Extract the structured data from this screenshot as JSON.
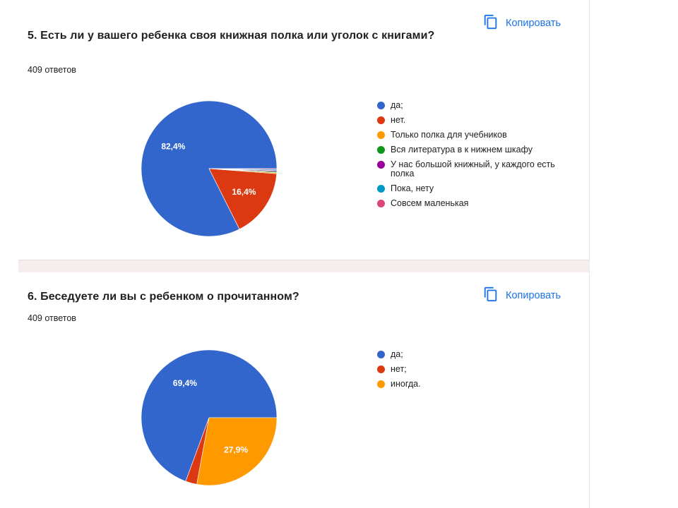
{
  "copy_label": "Копировать",
  "questions": [
    {
      "title": "5.   Есть ли у вашего ребенка своя книжная полка или уголок с книгами?",
      "responses": "409 ответов",
      "legend": [
        {
          "label": "да;",
          "color": "#3366cc"
        },
        {
          "label": "нет.",
          "color": "#dc3912"
        },
        {
          "label": "Только полка для учебников",
          "color": "#ff9900"
        },
        {
          "label": "Вся литература в к нижнем шкафу",
          "color": "#109618"
        },
        {
          "label": "У нас большой книжный, у каждого есть полка",
          "color": "#990099"
        },
        {
          "label": "Пока, нету",
          "color": "#0099c6"
        },
        {
          "label": "Совсем маленькая",
          "color": "#dd4477"
        }
      ]
    },
    {
      "title": "6. Беседуете ли вы с ребенком о прочитанном?",
      "responses": "409 ответов",
      "legend": [
        {
          "label": "да;",
          "color": "#3366cc"
        },
        {
          "label": "нет;",
          "color": "#dc3912"
        },
        {
          "label": "иногда.",
          "color": "#ff9900"
        }
      ]
    }
  ],
  "chart_data": [
    {
      "type": "pie",
      "categories": [
        "да;",
        "нет.",
        "Только полка для учебников",
        "Вся литература в к нижнем шкафу",
        "У нас большой книжный, у каждого есть полка",
        "Пока, нету",
        "Совсем маленькая"
      ],
      "values": [
        82.4,
        16.4,
        0.25,
        0.25,
        0.25,
        0.25,
        0.2
      ],
      "data_labels": [
        "82,4%",
        "16,4%",
        "",
        "",
        "",
        "",
        ""
      ],
      "colors": [
        "#3366cc",
        "#dc3912",
        "#ff9900",
        "#109618",
        "#990099",
        "#0099c6",
        "#dd4477"
      ]
    },
    {
      "type": "pie",
      "categories": [
        "да;",
        "нет;",
        "иногда."
      ],
      "values": [
        69.4,
        2.7,
        27.9
      ],
      "data_labels": [
        "69,4%",
        "",
        "27,9%"
      ],
      "colors": [
        "#3366cc",
        "#dc3912",
        "#ff9900"
      ]
    }
  ]
}
